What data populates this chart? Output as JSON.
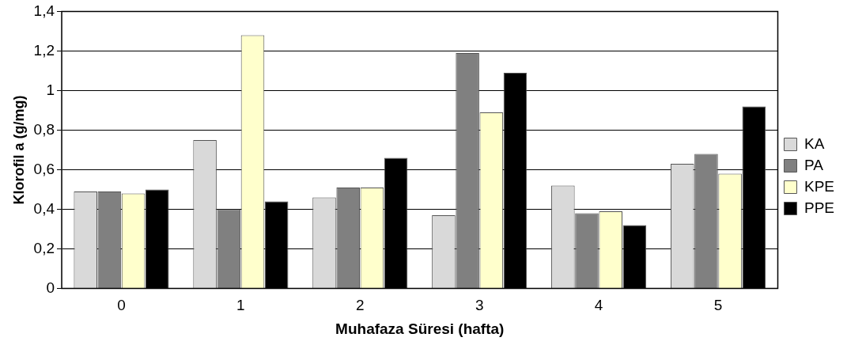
{
  "chart_data": {
    "type": "bar",
    "xlabel": "Muhafaza Süresi (hafta)",
    "ylabel": "Klorofil a (g/mg)",
    "categories": [
      "0",
      "1",
      "2",
      "3",
      "4",
      "5"
    ],
    "series": [
      {
        "name": "KA",
        "color": "#d9d9d9",
        "values": [
          0.49,
          0.75,
          0.46,
          0.37,
          0.52,
          0.63
        ]
      },
      {
        "name": "PA",
        "color": "#808080",
        "values": [
          0.49,
          0.4,
          0.51,
          1.19,
          0.38,
          0.68
        ]
      },
      {
        "name": "KPE",
        "color": "#ffffcc",
        "values": [
          0.48,
          1.28,
          0.51,
          0.89,
          0.39,
          0.58
        ]
      },
      {
        "name": "PPE",
        "color": "#000000",
        "values": [
          0.5,
          0.44,
          0.66,
          1.09,
          0.32,
          0.92
        ]
      }
    ],
    "ylim": [
      0,
      1.4
    ],
    "yticks": [
      {
        "value": 0,
        "label": "0"
      },
      {
        "value": 0.2,
        "label": "0,2"
      },
      {
        "value": 0.4,
        "label": "0,4"
      },
      {
        "value": 0.6,
        "label": "0,6"
      },
      {
        "value": 0.8,
        "label": "0,8"
      },
      {
        "value": 1,
        "label": "1"
      },
      {
        "value": 1.2,
        "label": "1,2"
      },
      {
        "value": 1.4,
        "label": "1,4"
      }
    ],
    "grid": "y",
    "legend": "right"
  }
}
